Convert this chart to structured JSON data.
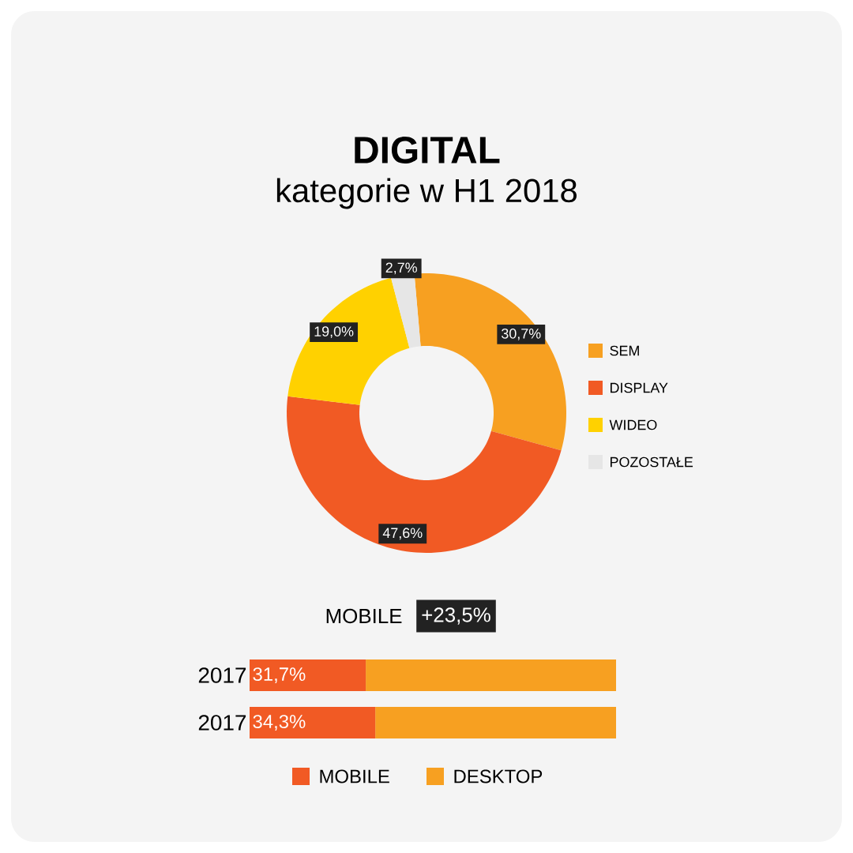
{
  "chart_data": [
    {
      "type": "donut",
      "title": "DIGITAL",
      "subtitle": "kategorie w H1 2018",
      "categories": [
        "SEM",
        "DISPLAY",
        "WIDEO",
        "POZOSTAŁE"
      ],
      "values": [
        30.7,
        47.6,
        19.0,
        2.7
      ],
      "colors": [
        "#f7a021",
        "#f15a24",
        "#ffd100",
        "#e6e6e6"
      ],
      "value_labels": [
        "30,7%",
        "47,6%",
        "19,0%",
        "2,7%"
      ],
      "legend": "right"
    },
    {
      "type": "bar",
      "orientation": "horizontal",
      "stacked": true,
      "title": "MOBILE",
      "annotations": [
        "+23,5%"
      ],
      "categories": [
        "2017",
        "2017"
      ],
      "series": [
        {
          "name": "MOBILE",
          "color": "#f15a24",
          "values": [
            31.7,
            34.3
          ],
          "value_labels": [
            "31,7%",
            "34,3%"
          ]
        },
        {
          "name": "DESKTOP",
          "color": "#f7a021",
          "values": [
            68.3,
            65.7
          ]
        }
      ],
      "xlim": [
        0,
        100
      ],
      "tick_labels": "y",
      "legend": "bottom"
    }
  ]
}
